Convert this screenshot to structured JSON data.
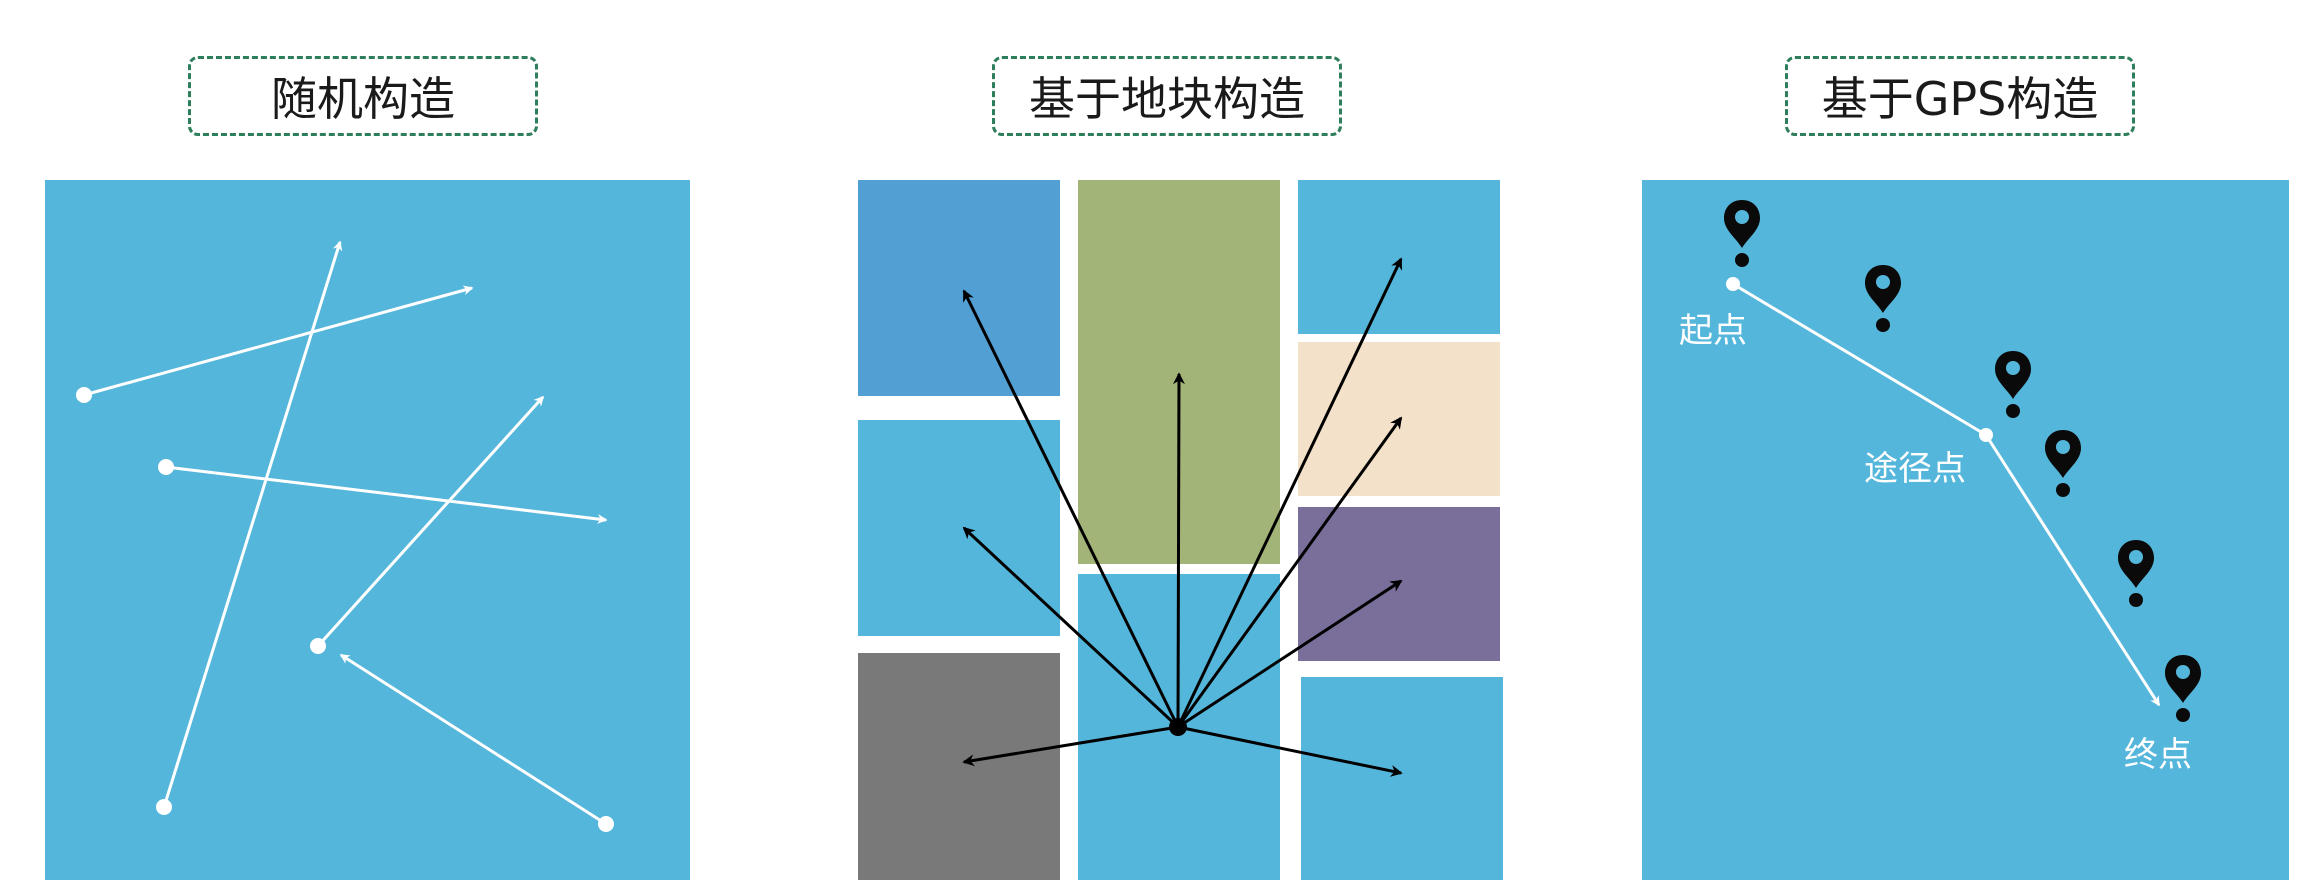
{
  "panels": {
    "random": {
      "title": "随机构造"
    },
    "block": {
      "title": "基于地块构造"
    },
    "gps": {
      "title": "基于GPS构造",
      "labels": {
        "start": "起点",
        "waypoint": "途径点",
        "end": "终点"
      }
    }
  },
  "colors": {
    "background": "#55b6db",
    "block_blue_dark": "#529fd4",
    "block_green": "#a2b478",
    "block_beige": "#f3e1c9",
    "block_purple": "#7a6e9b",
    "block_gray": "#7a797a",
    "title_border": "#2e7d5b",
    "arrow_white": "#ffffff",
    "arrow_black": "#000000"
  },
  "icons": [
    "location-pin-icon"
  ]
}
